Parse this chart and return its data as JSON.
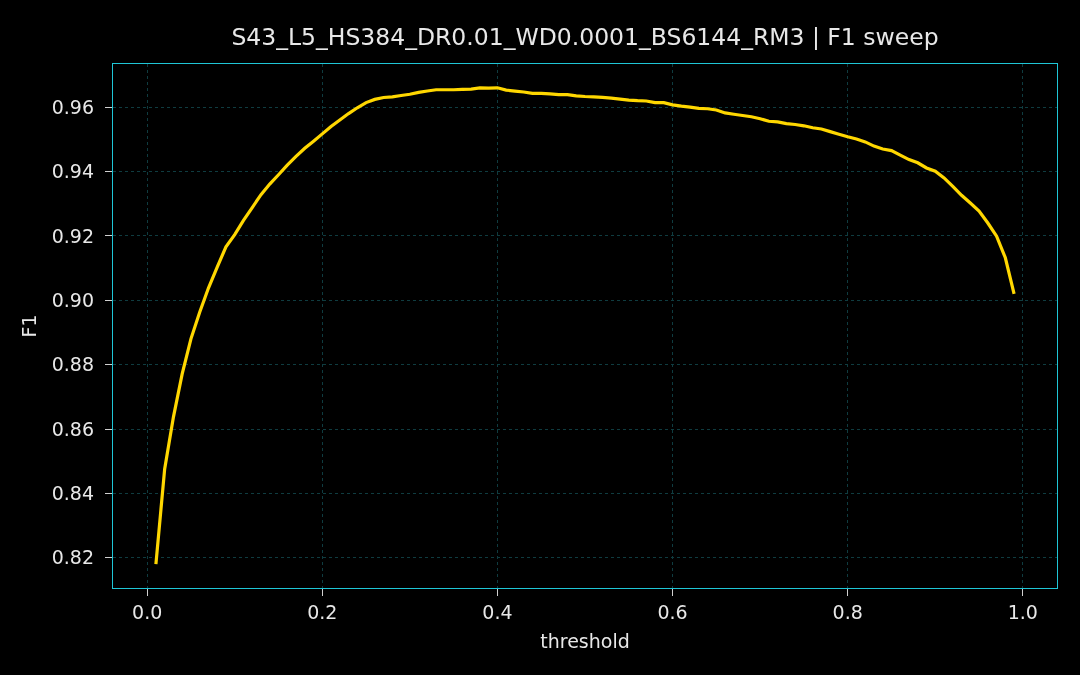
{
  "chart_data": {
    "type": "line",
    "title": "S43_L5_HS384_DR0.01_WD0.0001_BS6144_RM3 | F1 sweep",
    "xlabel": "threshold",
    "ylabel": "F1",
    "x": [
      0.01,
      0.02,
      0.03,
      0.04,
      0.05,
      0.06,
      0.07,
      0.08,
      0.09,
      0.1,
      0.11,
      0.12,
      0.13,
      0.14,
      0.15,
      0.16,
      0.17,
      0.18,
      0.19,
      0.2,
      0.21,
      0.22,
      0.23,
      0.24,
      0.25,
      0.26,
      0.27,
      0.28,
      0.29,
      0.3,
      0.31,
      0.32,
      0.33,
      0.34,
      0.35,
      0.36,
      0.37,
      0.38,
      0.39,
      0.4,
      0.41,
      0.42,
      0.43,
      0.44,
      0.45,
      0.46,
      0.47,
      0.48,
      0.49,
      0.5,
      0.51,
      0.52,
      0.53,
      0.54,
      0.55,
      0.56,
      0.57,
      0.58,
      0.59,
      0.6,
      0.61,
      0.62,
      0.63,
      0.64,
      0.65,
      0.66,
      0.67,
      0.68,
      0.69,
      0.7,
      0.71,
      0.72,
      0.73,
      0.74,
      0.75,
      0.76,
      0.77,
      0.78,
      0.79,
      0.8,
      0.81,
      0.82,
      0.83,
      0.84,
      0.85,
      0.86,
      0.87,
      0.88,
      0.89,
      0.9,
      0.91,
      0.92,
      0.93,
      0.94,
      0.95,
      0.96,
      0.97,
      0.98,
      0.99
    ],
    "series": [
      {
        "color": "#ffd700",
        "values": [
          0.818,
          0.8476,
          0.8637,
          0.8771,
          0.888,
          0.8963,
          0.9038,
          0.9103,
          0.9166,
          0.9204,
          0.9248,
          0.9288,
          0.9328,
          0.9361,
          0.939,
          0.942,
          0.9447,
          0.9472,
          0.9494,
          0.9517,
          0.954,
          0.956,
          0.958,
          0.9598,
          0.9614,
          0.9624,
          0.963,
          0.9632,
          0.9636,
          0.964,
          0.9646,
          0.965,
          0.9654,
          0.9654,
          0.9654,
          0.9655,
          0.9656,
          0.966,
          0.9659,
          0.966,
          0.9653,
          0.965,
          0.9647,
          0.9643,
          0.9643,
          0.9641,
          0.9639,
          0.9639,
          0.9635,
          0.9633,
          0.9632,
          0.963,
          0.9628,
          0.9625,
          0.9622,
          0.962,
          0.9619,
          0.9614,
          0.9614,
          0.9607,
          0.9603,
          0.96,
          0.9596,
          0.9595,
          0.9591,
          0.9582,
          0.9578,
          0.9574,
          0.957,
          0.9564,
          0.9556,
          0.9554,
          0.9549,
          0.9546,
          0.9542,
          0.9536,
          0.9532,
          0.9524,
          0.9516,
          0.9508,
          0.9501,
          0.9492,
          0.9479,
          0.947,
          0.9465,
          0.9451,
          0.9437,
          0.9427,
          0.9411,
          0.9401,
          0.938,
          0.9354,
          0.9326,
          0.9302,
          0.9277,
          0.924,
          0.9199,
          0.9132,
          0.902
        ]
      }
    ],
    "xlim": [
      -0.039,
      1.039
    ],
    "ylim": [
      0.8106,
      0.9734
    ],
    "xticks": [
      {
        "value": 0,
        "label": "0.0"
      },
      0.2,
      0.4,
      0.6,
      0.8,
      {
        "value": 1,
        "label": "1.0"
      }
    ],
    "yticks": [
      0.82,
      0.84,
      0.86,
      0.88,
      {
        "value": 0.9,
        "label": "0.90"
      },
      0.92,
      0.94,
      0.96
    ],
    "grid": true
  }
}
